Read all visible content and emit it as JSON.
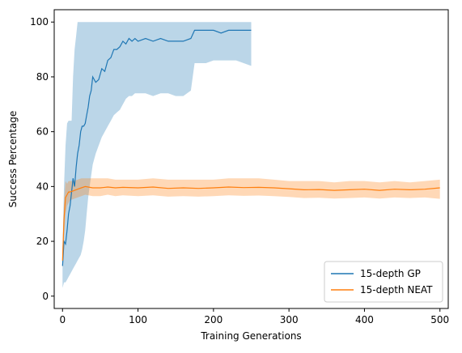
{
  "chart_data": {
    "type": "line",
    "title": "",
    "xlabel": "Training Generations",
    "ylabel": "Success Percentage",
    "xlim": [
      -11,
      511
    ],
    "ylim": [
      -4.5,
      104.5
    ],
    "xticks": [
      0,
      100,
      200,
      300,
      400,
      500
    ],
    "yticks": [
      0,
      20,
      40,
      60,
      80,
      100
    ],
    "grid": false,
    "legend_position": "lower right",
    "series": [
      {
        "name": "15-depth GP",
        "color": "#1f77b4",
        "band_color": "#1f77b4",
        "band_opacity": 0.3,
        "x": [
          0,
          2,
          4,
          6,
          8,
          10,
          12,
          14,
          16,
          18,
          20,
          22,
          24,
          26,
          28,
          30,
          32,
          34,
          36,
          38,
          40,
          44,
          48,
          52,
          56,
          60,
          64,
          68,
          72,
          76,
          80,
          84,
          88,
          92,
          96,
          100,
          110,
          120,
          130,
          140,
          150,
          160,
          170,
          175,
          180,
          190,
          200,
          210,
          220,
          230,
          240,
          250
        ],
        "y": [
          11,
          20,
          19,
          24,
          30,
          33,
          38,
          43,
          40,
          47,
          52,
          55,
          60,
          62,
          62,
          63,
          66,
          69,
          73,
          75,
          80,
          78,
          79,
          83,
          82,
          86,
          87,
          90,
          90,
          91,
          93,
          92,
          94,
          93,
          94,
          93,
          94,
          93,
          94,
          93,
          93,
          93,
          94,
          97,
          97,
          97,
          97,
          96,
          97,
          97,
          97,
          97
        ],
        "lower": [
          3,
          5,
          5,
          6,
          7,
          8,
          9,
          10,
          11,
          12,
          13,
          14,
          15,
          17,
          20,
          24,
          30,
          36,
          40,
          44,
          48,
          52,
          55,
          58,
          60,
          62,
          64,
          66,
          67,
          68,
          70,
          72,
          73,
          73,
          74,
          74,
          74,
          73,
          74,
          74,
          73,
          73,
          75,
          85,
          85,
          85,
          86,
          86,
          86,
          86,
          85,
          84
        ],
        "upper": [
          18,
          40,
          55,
          63,
          64,
          64,
          64,
          80,
          90,
          95,
          100,
          100,
          100,
          100,
          100,
          100,
          100,
          100,
          100,
          100,
          100,
          100,
          100,
          100,
          100,
          100,
          100,
          100,
          100,
          100,
          100,
          100,
          100,
          100,
          100,
          100,
          100,
          100,
          100,
          100,
          100,
          100,
          100,
          100,
          100,
          100,
          100,
          100,
          100,
          100,
          100,
          100
        ]
      },
      {
        "name": "15-depth NEAT",
        "color": "#ff7f0e",
        "band_color": "#ff7f0e",
        "band_opacity": 0.3,
        "x": [
          0,
          2,
          4,
          6,
          8,
          10,
          15,
          20,
          25,
          30,
          40,
          50,
          60,
          70,
          80,
          100,
          120,
          140,
          160,
          180,
          200,
          220,
          240,
          260,
          280,
          300,
          320,
          340,
          360,
          380,
          400,
          420,
          440,
          460,
          480,
          500
        ],
        "y": [
          13,
          28,
          36,
          37,
          38,
          38,
          38.5,
          39,
          39.5,
          40,
          39.5,
          39.5,
          39.8,
          39.5,
          39.7,
          39.5,
          39.8,
          39.3,
          39.5,
          39.3,
          39.5,
          39.8,
          39.6,
          39.7,
          39.5,
          39.2,
          38.8,
          38.9,
          38.6,
          38.8,
          39.0,
          38.6,
          39.0,
          38.8,
          39.0,
          39.5
        ],
        "lower": [
          10,
          22,
          30,
          33,
          34,
          35,
          35.5,
          36,
          36.5,
          37,
          36.5,
          36.5,
          37,
          36.5,
          36.8,
          36.5,
          36.8,
          36.3,
          36.5,
          36.3,
          36.5,
          36.8,
          36.6,
          36.7,
          36.5,
          36.2,
          35.8,
          35.9,
          35.6,
          35.8,
          36.0,
          35.6,
          36.0,
          35.8,
          36.0,
          35.5
        ],
        "upper": [
          17,
          34,
          42,
          41,
          42,
          42,
          42,
          42.5,
          43,
          43,
          43,
          43,
          43,
          42.5,
          42.5,
          42.5,
          43,
          42.5,
          42.5,
          42.5,
          42.5,
          43,
          43,
          43,
          42.5,
          42,
          42,
          42,
          41.5,
          42,
          42,
          41.5,
          42,
          41.5,
          42,
          42.5
        ]
      }
    ]
  }
}
